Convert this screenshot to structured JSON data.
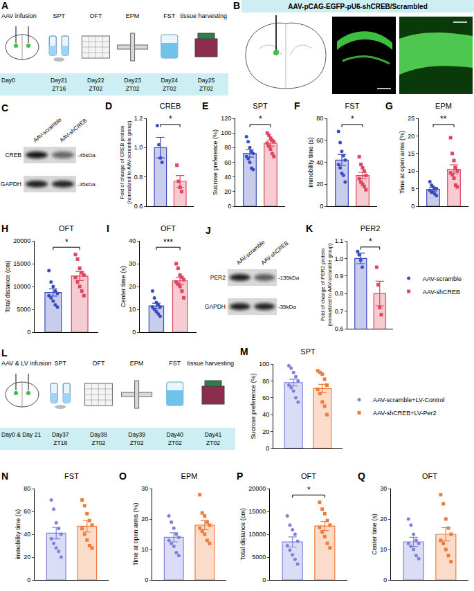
{
  "diagrams": [
    {
      "panel": "A",
      "type": "timeline",
      "steps": [
        {
          "label": "AAV infusion",
          "day": "Day0"
        },
        {
          "label": "SPT",
          "day": "Day21",
          "time": "ZT16"
        },
        {
          "label": "OFT",
          "day": "Day22",
          "time": "ZT02"
        },
        {
          "label": "EPM",
          "day": "Day23",
          "time": "ZT02"
        },
        {
          "label": "FST",
          "day": "Day24",
          "time": "ZT02"
        },
        {
          "label": "tissue harvesting",
          "day": "Day25",
          "time": "ZT02"
        }
      ]
    },
    {
      "panel": "B",
      "type": "image",
      "title": "AAV-pCAG-EGFP-pU6-shCREB/Scrambled"
    },
    {
      "panel": "L",
      "type": "timeline",
      "steps": [
        {
          "label": "AAV & LV infusion",
          "day": "Day0 & Day 21"
        },
        {
          "label": "SPT",
          "day": "Day37",
          "time": "ZT16"
        },
        {
          "label": "OFT",
          "day": "Day38",
          "time": "ZT02"
        },
        {
          "label": "EPM",
          "day": "Day39",
          "time": "ZT02"
        },
        {
          "label": "FST",
          "day": "Day40",
          "time": "ZT02"
        },
        {
          "label": "tissue harvesting",
          "day": "Day41",
          "time": "ZT02"
        }
      ]
    }
  ],
  "blots": [
    {
      "panel": "C",
      "lanes": [
        "AAV-scramble",
        "AAV-shCREB"
      ],
      "rows": [
        {
          "protein": "CREB",
          "size": "-45kDa"
        },
        {
          "protein": "GAPDH",
          "size": "-35kDa"
        }
      ]
    },
    {
      "panel": "J",
      "lanes": [
        "AAV-scramble",
        "AAV-shCREB"
      ],
      "rows": [
        {
          "protein": "PER2",
          "size": "-135kDa"
        },
        {
          "protein": "GAPDH",
          "size": "-35kDa"
        }
      ]
    }
  ],
  "chart_data": [
    {
      "panel": "D",
      "type": "bar",
      "title": "CREB",
      "y_label": "Fold of change of CREB protein\n(normalized to AAV-scramble group)",
      "ylim": [
        0.6,
        1.2
      ],
      "yticks": [
        0.6,
        0.8,
        {
          "value": 1,
          "label": "1.0"
        },
        1.2
      ],
      "tick_labels": "y",
      "significance": "*",
      "series": [
        {
          "color": "#3a4cc0",
          "marker": "circle",
          "values": [
            1.0
          ],
          "error": [
            0.07
          ],
          "points": [
            1.15,
            1.02,
            0.93,
            0.9
          ]
        },
        {
          "color": "#e0455e",
          "marker": "square",
          "values": [
            0.77
          ],
          "error": [
            0.04
          ],
          "points": [
            0.88,
            0.77,
            0.73,
            0.7
          ]
        }
      ]
    },
    {
      "panel": "E",
      "type": "bar",
      "title": "SPT",
      "y_label": "Sucrose preference (%)",
      "ylim": [
        0,
        120
      ],
      "yticks": [
        0,
        20,
        40,
        60,
        80,
        100,
        120
      ],
      "tick_labels": "y",
      "significance": "*",
      "series": [
        {
          "color": "#3a4cc0",
          "marker": "circle",
          "values": [
            72
          ],
          "error": [
            5
          ],
          "points": [
            95,
            88,
            80,
            75,
            72,
            68,
            65,
            60,
            52,
            50
          ]
        },
        {
          "color": "#e0455e",
          "marker": "square",
          "values": [
            86
          ],
          "error": [
            4
          ],
          "points": [
            100,
            97,
            93,
            90,
            88,
            86,
            82,
            78,
            72,
            68
          ]
        }
      ]
    },
    {
      "panel": "F",
      "type": "bar",
      "title": "FST",
      "y_label": "immobility time (s)",
      "ylim": [
        0,
        80
      ],
      "yticks": [
        0,
        20,
        40,
        60,
        80
      ],
      "tick_labels": "y",
      "significance": "*",
      "series": [
        {
          "color": "#3a4cc0",
          "marker": "circle",
          "values": [
            42
          ],
          "error": [
            5
          ],
          "points": [
            68,
            58,
            50,
            46,
            42,
            38,
            35,
            30,
            28,
            22
          ]
        },
        {
          "color": "#e0455e",
          "marker": "square",
          "values": [
            28
          ],
          "error": [
            3
          ],
          "points": [
            45,
            38,
            35,
            32,
            28,
            25,
            22,
            20,
            18,
            15
          ]
        }
      ]
    },
    {
      "panel": "G",
      "type": "bar",
      "title": "EPM",
      "y_label": "Time at open arms (%)",
      "ylim": [
        0,
        25
      ],
      "yticks": [
        0,
        5,
        10,
        15,
        20,
        25
      ],
      "tick_labels": "y",
      "significance": "**",
      "series": [
        {
          "color": "#3a4cc0",
          "marker": "circle",
          "values": [
            4.8
          ],
          "error": [
            0.5
          ],
          "points": [
            7,
            6,
            5.5,
            5,
            5,
            4.5,
            4,
            4,
            3.5,
            3
          ]
        },
        {
          "color": "#e0455e",
          "marker": "square",
          "values": [
            10.5
          ],
          "error": [
            1.3
          ],
          "points": [
            19.5,
            15,
            13,
            11,
            10,
            9.5,
            9,
            8,
            6,
            5.5
          ]
        }
      ]
    },
    {
      "panel": "H",
      "type": "bar",
      "title": "OFT",
      "y_label": "Total distance (cm)",
      "ylim": [
        0,
        20000
      ],
      "yticks": [
        0,
        5000,
        10000,
        15000,
        20000
      ],
      "tick_labels": "y",
      "significance": "*",
      "series": [
        {
          "color": "#3a4cc0",
          "marker": "circle",
          "values": [
            8700
          ],
          "error": [
            800
          ],
          "points": [
            13500,
            11000,
            10000,
            9000,
            8500,
            8000,
            7500,
            6800,
            6000,
            5500
          ]
        },
        {
          "color": "#e0455e",
          "marker": "square",
          "values": [
            12300
          ],
          "error": [
            1000
          ],
          "points": [
            17000,
            16000,
            14000,
            13000,
            12500,
            12000,
            11000,
            10000,
            9000,
            8000
          ]
        }
      ]
    },
    {
      "panel": "I",
      "type": "bar",
      "title": "OFT",
      "y_label": "Center time (s)",
      "ylim": [
        0,
        40
      ],
      "yticks": [
        0,
        10,
        20,
        30,
        40
      ],
      "tick_labels": "y",
      "significance": "***",
      "series": [
        {
          "color": "#3a4cc0",
          "marker": "circle",
          "values": [
            11.5
          ],
          "error": [
            1.2
          ],
          "points": [
            18,
            15,
            13,
            12,
            11,
            11,
            10,
            9,
            8,
            7
          ]
        },
        {
          "color": "#e0455e",
          "marker": "square",
          "values": [
            22.5
          ],
          "error": [
            1.5
          ],
          "points": [
            30,
            28,
            25,
            24,
            23,
            22,
            21,
            20,
            18,
            15
          ]
        }
      ]
    },
    {
      "panel": "K",
      "type": "bar",
      "title": "PER2",
      "y_label": "Fold of change of PER2 protein\n(normalized to AAV-scramble group)",
      "ylim": [
        0.6,
        1.1
      ],
      "yticks": [
        0.6,
        0.7,
        0.8,
        0.9,
        {
          "value": 1,
          "label": "1.0"
        },
        1.1
      ],
      "tick_labels": "y",
      "significance": "*",
      "legend": "right",
      "series": [
        {
          "name": "AAV-scramble",
          "color": "#3a4cc0",
          "marker": "circle",
          "values": [
            1.0
          ],
          "error": [
            0.03
          ],
          "points": [
            1.04,
            1.02,
            0.99,
            0.95
          ]
        },
        {
          "name": "AAV-shCREB",
          "color": "#e0455e",
          "marker": "square",
          "values": [
            0.8
          ],
          "error": [
            0.07
          ],
          "points": [
            0.95,
            0.85,
            0.72,
            0.68
          ]
        }
      ]
    },
    {
      "panel": "M",
      "type": "bar",
      "title": "SPT",
      "y_label": "Sucrose preference (%)",
      "ylim": [
        0,
        100
      ],
      "yticks": [
        0,
        20,
        40,
        60,
        80,
        100
      ],
      "tick_labels": "y",
      "legend": "right",
      "series": [
        {
          "name": "AAV-scramble+LV-Control",
          "color": "#7f82db",
          "marker": "circle",
          "values": [
            78
          ],
          "error": [
            4
          ],
          "points": [
            98,
            95,
            90,
            85,
            80,
            75,
            72,
            68,
            60,
            55
          ]
        },
        {
          "name": "AAV-shCREB+LV-Per2",
          "color": "#f07c3c",
          "marker": "square",
          "values": [
            71
          ],
          "error": [
            5
          ],
          "points": [
            92,
            90,
            88,
            82,
            75,
            70,
            65,
            55,
            50,
            40
          ]
        }
      ]
    },
    {
      "panel": "N",
      "type": "bar",
      "title": "FST",
      "y_label": "immobility time (s)",
      "ylim": [
        0,
        80
      ],
      "yticks": [
        0,
        20,
        40,
        60,
        80
      ],
      "tick_labels": "y",
      "series": [
        {
          "color": "#7f82db",
          "marker": "circle",
          "values": [
            41
          ],
          "error": [
            5
          ],
          "points": [
            70,
            62,
            50,
            45,
            40,
            36,
            32,
            28,
            25,
            20
          ]
        },
        {
          "color": "#f07c3c",
          "marker": "square",
          "values": [
            47
          ],
          "error": [
            5
          ],
          "points": [
            70,
            65,
            58,
            52,
            48,
            45,
            40,
            35,
            30,
            28
          ]
        }
      ]
    },
    {
      "panel": "O",
      "type": "bar",
      "title": "EPM",
      "y_label": "Time at open arms (%)",
      "ylim": [
        0,
        30
      ],
      "yticks": [
        0,
        10,
        20,
        30
      ],
      "tick_labels": "y",
      "series": [
        {
          "color": "#7f82db",
          "marker": "circle",
          "values": [
            14
          ],
          "error": [
            1.5
          ],
          "points": [
            21,
            19,
            17,
            15,
            14,
            13,
            12,
            11,
            9,
            8
          ]
        },
        {
          "color": "#f07c3c",
          "marker": "square",
          "values": [
            18
          ],
          "error": [
            1.5
          ],
          "points": [
            28,
            22,
            21,
            19,
            18,
            17,
            16,
            15,
            13,
            12
          ]
        }
      ]
    },
    {
      "panel": "P",
      "type": "bar",
      "title": "OFT",
      "y_label": "Total distance (cm)",
      "ylim": [
        0,
        20000
      ],
      "yticks": [
        0,
        5000,
        10000,
        15000,
        20000
      ],
      "tick_labels": "y",
      "significance": "*",
      "series": [
        {
          "color": "#7f82db",
          "marker": "circle",
          "values": [
            8300
          ],
          "error": [
            1100
          ],
          "points": [
            14000,
            12000,
            11000,
            10000,
            8500,
            7500,
            6500,
            5500,
            4500,
            3500
          ]
        },
        {
          "color": "#f07c3c",
          "marker": "square",
          "values": [
            11800
          ],
          "error": [
            1000
          ],
          "points": [
            17000,
            15500,
            14500,
            13000,
            12000,
            11500,
            10500,
            9500,
            8000,
            7000
          ]
        }
      ]
    },
    {
      "panel": "Q",
      "type": "bar",
      "title": "OFT",
      "y_label": "Center time (s)",
      "ylim": [
        0,
        30
      ],
      "yticks": [
        0,
        10,
        20,
        30
      ],
      "tick_labels": "y",
      "series": [
        {
          "color": "#7f82db",
          "marker": "circle",
          "values": [
            12.5
          ],
          "error": [
            1.5
          ],
          "points": [
            20,
            18,
            15,
            13,
            12,
            12,
            11,
            10,
            8,
            7
          ]
        },
        {
          "color": "#f07c3c",
          "marker": "square",
          "values": [
            15
          ],
          "error": [
            2.2
          ],
          "points": [
            28,
            25,
            20,
            17,
            15,
            13,
            12,
            10,
            8,
            6
          ]
        }
      ]
    }
  ]
}
